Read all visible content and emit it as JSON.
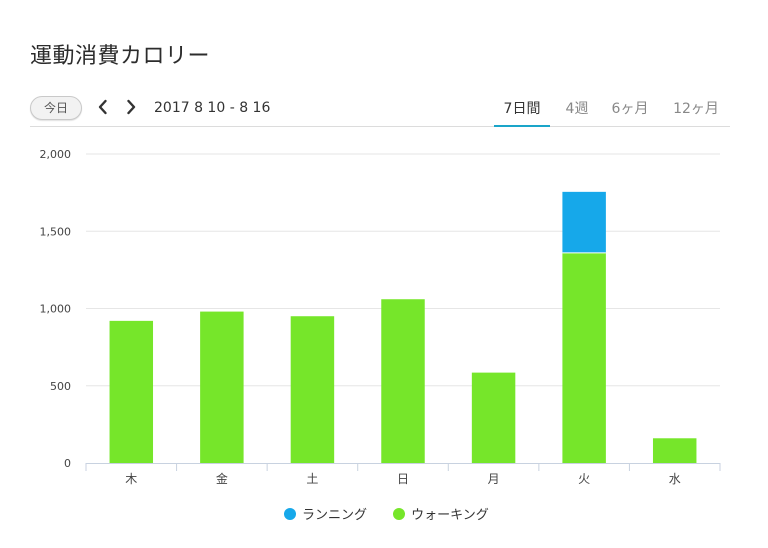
{
  "page": {
    "title": "運動消費カロリー"
  },
  "toolbar": {
    "today_label": "今日",
    "prev_icon": "chevron-left-icon",
    "next_icon": "chevron-right-icon",
    "date_range": "2017 8 10 - 8 16",
    "tabs": [
      {
        "label": "7日間",
        "active": true
      },
      {
        "label": "4週",
        "active": false
      },
      {
        "label": "6ヶ月",
        "active": false
      },
      {
        "label": "12ヶ月",
        "active": false
      }
    ],
    "accent_color": "#1aa5c9"
  },
  "chart_data": {
    "type": "bar",
    "stacked": true,
    "categories": [
      "木",
      "金",
      "土",
      "日",
      "月",
      "火",
      "水"
    ],
    "series": [
      {
        "name": "ウォーキング",
        "color": "#76e62a",
        "values": [
          920,
          980,
          950,
          1060,
          585,
          1360,
          160
        ]
      },
      {
        "name": "ランニング",
        "color": "#16a8ea",
        "values": [
          0,
          0,
          0,
          0,
          0,
          395,
          0
        ]
      }
    ],
    "ylim": [
      0,
      2000
    ],
    "yticks": [
      0,
      500,
      1000,
      1500,
      2000
    ],
    "ytick_labels": [
      "0",
      "500",
      "1,000",
      "1,500",
      "2,000"
    ],
    "grid": true,
    "legend_position": "bottom",
    "legend_order": [
      "ランニング",
      "ウォーキング"
    ]
  }
}
